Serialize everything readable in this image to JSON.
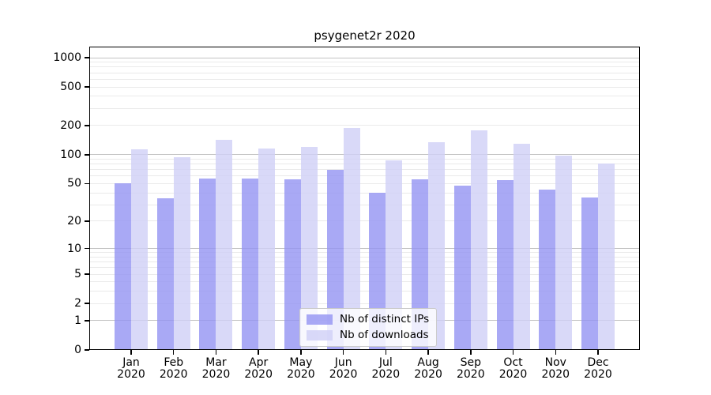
{
  "chart_data": {
    "type": "bar",
    "title": "psygenet2r 2020",
    "categories": [
      "Jan",
      "Feb",
      "Mar",
      "Apr",
      "May",
      "Jun",
      "Jul",
      "Aug",
      "Sep",
      "Oct",
      "Nov",
      "Dec"
    ],
    "x_sublabel": "2020",
    "series": [
      {
        "name": "Nb of distinct IPs",
        "color": "rgba(147,147,243,0.8)",
        "values": [
          50,
          35,
          56,
          57,
          55,
          70,
          40,
          55,
          48,
          54,
          43,
          36
        ]
      },
      {
        "name": "Nb of downloads",
        "color": "rgba(208,208,246,0.8)",
        "values": [
          113,
          95,
          142,
          115,
          120,
          190,
          88,
          136,
          180,
          130,
          97,
          81
        ]
      }
    ],
    "y_axis": {
      "scale": "log1p",
      "ticks": [
        0,
        1,
        2,
        5,
        10,
        20,
        50,
        100,
        200,
        500,
        1000
      ],
      "major_gridlines": [
        1,
        10,
        100,
        1000
      ],
      "ylim": [
        0,
        1300
      ]
    },
    "grid": true,
    "legend_position": "inside-bottom-center",
    "colors": {
      "major_grid": "#c3c3c3",
      "minor_grid": "#eaeaea",
      "spine": "#000000",
      "background": "#ffffff"
    }
  }
}
